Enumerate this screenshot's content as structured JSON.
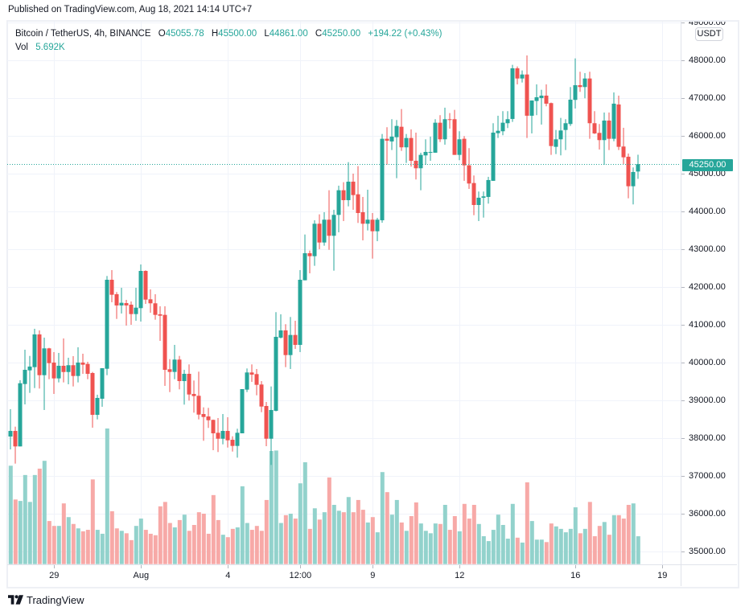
{
  "header": {
    "published": "Published on TradingView.com, Aug 18, 2021 14:14 UTC+7"
  },
  "legend": {
    "symbol": "Bitcoin / TetherUS, 4h, BINANCE",
    "open_label": "O",
    "open": "45055.78",
    "high_label": "H",
    "high": "45500.00",
    "low_label": "L",
    "low": "44861.00",
    "close_label": "C",
    "close": "45250.00",
    "change": "+194.22 (+0.43%)",
    "vol_label": "Vol",
    "vol": "5.692K"
  },
  "price_axis": {
    "currency": "USDT",
    "last_price": "45250.00"
  },
  "footer": {
    "brand": "TradingView"
  },
  "colors": {
    "up": "#26a69a",
    "down": "#ef5350",
    "up_volume": "#92d2cc",
    "down_volume": "#f7a9a7",
    "grid": "#f0f3fa"
  },
  "chart_data": {
    "type": "candlestick",
    "title": "Bitcoin / TetherUS, 4h, BINANCE",
    "xlabel": "",
    "ylabel": "USDT",
    "ylim": [
      34660,
      49020
    ],
    "grid": true,
    "price_ticks": [
      "35000.00",
      "36000.00",
      "37000.00",
      "38000.00",
      "39000.00",
      "40000.00",
      "41000.00",
      "42000.00",
      "43000.00",
      "44000.00",
      "45000.00",
      "46000.00",
      "47000.00",
      "48000.00",
      "49000.00"
    ],
    "time_ticks": [
      {
        "label": "29",
        "index": 9
      },
      {
        "label": "Aug",
        "index": 27
      },
      {
        "label": "4",
        "index": 45
      },
      {
        "label": "12:00",
        "index": 60
      },
      {
        "label": "9",
        "index": 75
      },
      {
        "label": "12",
        "index": 93
      },
      {
        "label": "16",
        "index": 117
      },
      {
        "label": "19",
        "index": 135
      }
    ],
    "last_price": 45250.0,
    "ohlc_fields": [
      "open",
      "high",
      "low",
      "close"
    ],
    "candles": [
      [
        38043,
        38766,
        37702,
        38191
      ],
      [
        38191,
        38304,
        37326,
        37781
      ],
      [
        37781,
        39532,
        37781,
        39453
      ],
      [
        39432,
        40340,
        38893,
        39808
      ],
      [
        39794,
        40176,
        39198,
        39894
      ],
      [
        39879,
        40894,
        39325,
        40745
      ],
      [
        40745,
        40851,
        39312,
        39666
      ],
      [
        39666,
        40660,
        38745,
        40376
      ],
      [
        40376,
        40390,
        39560,
        39985
      ],
      [
        40000,
        40277,
        39170,
        39581
      ],
      [
        39581,
        40255,
        39475,
        39915
      ],
      [
        39915,
        40638,
        39475,
        39750
      ],
      [
        39750,
        40128,
        39425,
        39930
      ],
      [
        39930,
        40170,
        39368,
        39645
      ],
      [
        39645,
        40404,
        39475,
        40000
      ],
      [
        40000,
        40234,
        39702,
        39943
      ],
      [
        39964,
        40021,
        39560,
        39702
      ],
      [
        39723,
        39752,
        38277,
        38617
      ],
      [
        38617,
        39149,
        38496,
        39064
      ],
      [
        39043,
        39851,
        38830,
        39851
      ],
      [
        39836,
        42291,
        39666,
        42191
      ],
      [
        42191,
        42447,
        41596,
        41794
      ],
      [
        41809,
        41866,
        41155,
        41511
      ],
      [
        41511,
        41979,
        41298,
        41582
      ],
      [
        41574,
        41660,
        40979,
        41511
      ],
      [
        41532,
        41617,
        41000,
        41283
      ],
      [
        41283,
        41979,
        41106,
        41453
      ],
      [
        41440,
        42596,
        41085,
        42425
      ],
      [
        42425,
        42440,
        41553,
        41666
      ],
      [
        41674,
        41936,
        41319,
        41568
      ],
      [
        41568,
        41809,
        41134,
        41262
      ],
      [
        41277,
        41489,
        40574,
        41240
      ],
      [
        41262,
        41489,
        39383,
        39808
      ],
      [
        39823,
        40091,
        39219,
        39752
      ],
      [
        39752,
        40468,
        39560,
        40079
      ],
      [
        40079,
        40176,
        39291,
        39510
      ],
      [
        39510,
        39808,
        38887,
        39702
      ],
      [
        39702,
        39951,
        38994,
        39155
      ],
      [
        39170,
        39525,
        38674,
        39113
      ],
      [
        39121,
        39759,
        38496,
        38623
      ],
      [
        38638,
        38815,
        37930,
        38560
      ],
      [
        38574,
        38801,
        38270,
        38474
      ],
      [
        38483,
        38490,
        37681,
        38128
      ],
      [
        38142,
        38532,
        37632,
        37985
      ],
      [
        37985,
        38638,
        37836,
        38191
      ],
      [
        38191,
        38553,
        37751,
        37943
      ],
      [
        37957,
        38049,
        37645,
        37794
      ],
      [
        37794,
        38249,
        37483,
        38142
      ],
      [
        38128,
        39298,
        38128,
        39298
      ],
      [
        39284,
        39844,
        39219,
        39738
      ],
      [
        39738,
        39951,
        39489,
        39681
      ],
      [
        39695,
        39830,
        39134,
        39411
      ],
      [
        39419,
        39510,
        38687,
        38836
      ],
      [
        38851,
        38957,
        37787,
        37985
      ],
      [
        37985,
        39368,
        37291,
        38745
      ],
      [
        38723,
        41334,
        38709,
        40681
      ],
      [
        40660,
        41277,
        40638,
        40851
      ],
      [
        40851,
        41015,
        39879,
        40198
      ],
      [
        40198,
        41206,
        39830,
        40730
      ],
      [
        40730,
        41106,
        40362,
        40468
      ],
      [
        40468,
        42447,
        40277,
        42191
      ],
      [
        42177,
        43389,
        42177,
        42894
      ],
      [
        42894,
        42964,
        42362,
        42815
      ],
      [
        42815,
        43766,
        42560,
        43674
      ],
      [
        43674,
        43922,
        43000,
        43177
      ],
      [
        43177,
        43979,
        43092,
        43781
      ],
      [
        43781,
        44560,
        42985,
        43355
      ],
      [
        43355,
        44043,
        42432,
        43908
      ],
      [
        43908,
        44681,
        43447,
        44560
      ],
      [
        44560,
        44773,
        43745,
        44298
      ],
      [
        44298,
        45304,
        44134,
        44787
      ],
      [
        44787,
        45000,
        44043,
        44432
      ],
      [
        44453,
        45198,
        43695,
        43957
      ],
      [
        43979,
        44383,
        43234,
        43674
      ],
      [
        43674,
        44574,
        43496,
        43781
      ],
      [
        43781,
        43957,
        42751,
        43475
      ],
      [
        43475,
        43830,
        43213,
        43781
      ],
      [
        43766,
        46049,
        43700,
        45922
      ],
      [
        45922,
        46228,
        45234,
        45872
      ],
      [
        45851,
        46440,
        45624,
        45979
      ],
      [
        45964,
        46419,
        44879,
        46262
      ],
      [
        46240,
        46709,
        45602,
        45696
      ],
      [
        45696,
        46049,
        45283,
        45943
      ],
      [
        45943,
        46170,
        45185,
        45340
      ],
      [
        45340,
        46085,
        44845,
        45142
      ],
      [
        45142,
        45553,
        44560,
        45496
      ],
      [
        45482,
        45908,
        45234,
        45574
      ],
      [
        45560,
        45979,
        45340,
        45574
      ],
      [
        45553,
        46440,
        45553,
        46347
      ],
      [
        46347,
        46547,
        45836,
        45908
      ],
      [
        45908,
        46745,
        45766,
        46440
      ],
      [
        46440,
        46602,
        46191,
        46419
      ],
      [
        46440,
        46687,
        45496,
        45496
      ],
      [
        45496,
        46121,
        45355,
        45908
      ],
      [
        45922,
        45993,
        44809,
        45219
      ],
      [
        45219,
        45674,
        44596,
        44738
      ],
      [
        44751,
        44951,
        43900,
        44170
      ],
      [
        44170,
        44526,
        43745,
        44362
      ],
      [
        44362,
        44526,
        43836,
        44398
      ],
      [
        44383,
        44915,
        44206,
        44830
      ],
      [
        44809,
        46334,
        44809,
        46085
      ],
      [
        46070,
        46532,
        45943,
        46134
      ],
      [
        46121,
        46653,
        46015,
        46347
      ],
      [
        46334,
        46653,
        46206,
        46440
      ],
      [
        46447,
        47879,
        46368,
        47787
      ],
      [
        47787,
        47836,
        47362,
        47517
      ],
      [
        47517,
        47730,
        47411,
        47623
      ],
      [
        47623,
        48128,
        45943,
        46532
      ],
      [
        46532,
        46936,
        46064,
        46936
      ],
      [
        46922,
        47362,
        46547,
        47021
      ],
      [
        47000,
        47219,
        46298,
        47064
      ],
      [
        47064,
        47362,
        46781,
        46851
      ],
      [
        46866,
        46880,
        45496,
        45730
      ],
      [
        45709,
        46155,
        45517,
        45908
      ],
      [
        45908,
        46475,
        45483,
        46142
      ],
      [
        46155,
        46440,
        45624,
        46334
      ],
      [
        46313,
        47291,
        46262,
        46957
      ],
      [
        46951,
        48049,
        46723,
        47340
      ],
      [
        47340,
        47696,
        47164,
        47291
      ],
      [
        47291,
        47660,
        46994,
        47517
      ],
      [
        47517,
        47696,
        45922,
        46334
      ],
      [
        46334,
        46653,
        46049,
        46064
      ],
      [
        46078,
        46313,
        45638,
        45887
      ],
      [
        45887,
        46617,
        45234,
        46404
      ],
      [
        46404,
        46617,
        45624,
        45922
      ],
      [
        45922,
        47149,
        45857,
        46851
      ],
      [
        46830,
        47064,
        45624,
        45709
      ],
      [
        45717,
        46213,
        45255,
        45432
      ],
      [
        45447,
        45532,
        44347,
        44666
      ],
      [
        44666,
        45164,
        44185,
        45043
      ],
      [
        45055.78,
        45500.0,
        44861.0,
        45250.0
      ]
    ],
    "volume_unit": "K",
    "volumes": [
      20.1,
      13.2,
      12.9,
      18.2,
      12.7,
      18.2,
      19.5,
      21.1,
      8.8,
      7.8,
      7.8,
      12.4,
      9.6,
      8.2,
      7.3,
      6.7,
      7.0,
      17.3,
      7.0,
      6.2,
      27.7,
      10.8,
      7.3,
      6.8,
      6.3,
      4.9,
      7.8,
      9.3,
      7.0,
      6.2,
      5.9,
      11.8,
      12.7,
      8.4,
      7.5,
      9.0,
      10.1,
      6.8,
      8.0,
      10.6,
      10.3,
      6.2,
      14.1,
      9.0,
      6.0,
      5.5,
      7.2,
      7.5,
      15.9,
      8.4,
      7.0,
      7.8,
      6.8,
      13.1,
      23.1,
      23.2,
      8.4,
      10.0,
      10.3,
      9.3,
      16.5,
      20.8,
      7.2,
      11.4,
      9.1,
      10.6,
      17.7,
      12.1,
      10.9,
      10.6,
      13.7,
      10.6,
      13.1,
      11.1,
      8.5,
      9.6,
      6.5,
      18.8,
      14.7,
      10.1,
      13.1,
      8.5,
      6.8,
      9.8,
      12.6,
      8.3,
      6.8,
      6.3,
      8.3,
      8.2,
      12.1,
      7.0,
      9.8,
      6.7,
      12.3,
      9.3,
      12.1,
      8.2,
      5.7,
      4.7,
      7.0,
      10.1,
      8.0,
      5.2,
      12.3,
      5.4,
      4.4,
      16.7,
      8.8,
      5.0,
      5.0,
      4.5,
      8.3,
      7.7,
      7.2,
      6.5,
      7.2,
      11.6,
      6.3,
      7.2,
      12.7,
      5.7,
      7.8,
      8.6,
      6.0,
      10.0,
      10.0,
      9.3,
      12.1,
      12.4,
      5.692
    ]
  }
}
